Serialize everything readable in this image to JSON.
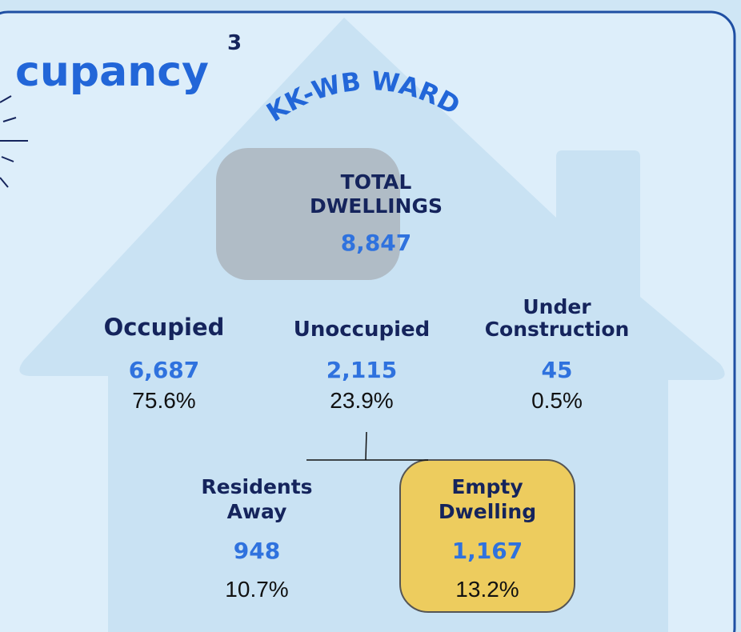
{
  "header": {
    "title": "cupancy",
    "superscript": "3"
  },
  "ward": "KK-WB WARD",
  "total": {
    "label": "TOTAL DWELLINGS",
    "value": "8,847"
  },
  "groups": [
    {
      "label": "Occupied",
      "value": "6,687",
      "percent": "75.6%"
    },
    {
      "label": "Unoccupied",
      "value": "2,115",
      "percent": "23.9%"
    },
    {
      "label": "Under Construction",
      "value": "45",
      "percent": "0.5%"
    }
  ],
  "unoccupied_breakdown": [
    {
      "label": "Residents Away",
      "value": "948",
      "percent": "10.7%"
    },
    {
      "label": "Empty Dwelling",
      "value": "1,167",
      "percent": "13.2%"
    }
  ]
}
